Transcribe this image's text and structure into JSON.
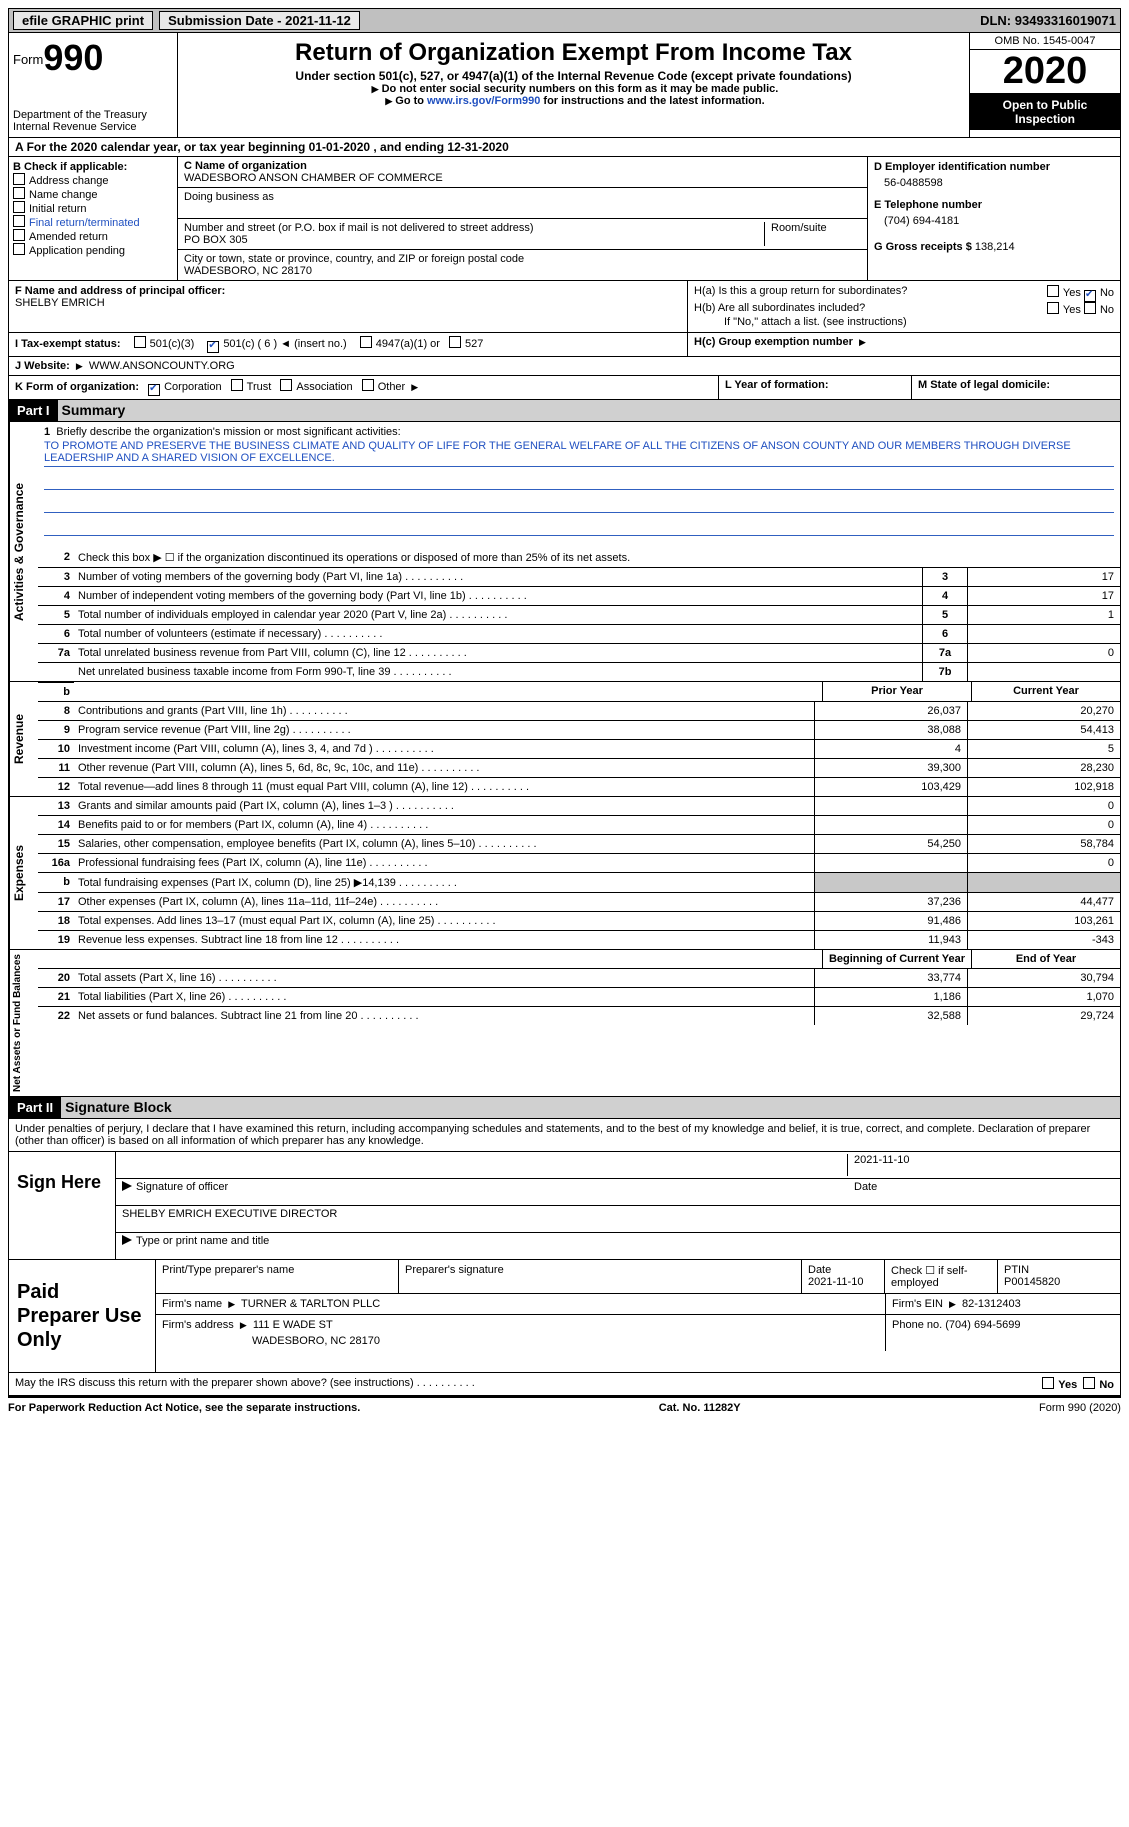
{
  "topbar": {
    "efile": "efile GRAPHIC print",
    "subdate_label": "Submission Date - ",
    "subdate": "2021-11-12",
    "dln_label": "DLN: ",
    "dln": "93493316019071"
  },
  "header": {
    "form_label": "Form",
    "form_num": "990",
    "dept": "Department of the Treasury\nInternal Revenue Service",
    "title": "Return of Organization Exempt From Income Tax",
    "sub": "Under section 501(c), 527, or 4947(a)(1) of the Internal Revenue Code (except private foundations)",
    "note1": "Do not enter social security numbers on this form as it may be made public.",
    "note2_pre": "Go to ",
    "note2_link": "www.irs.gov/Form990",
    "note2_post": " for instructions and the latest information.",
    "omb": "OMB No. 1545-0047",
    "year": "2020",
    "inspect": "Open to Public Inspection"
  },
  "row_a": "For the 2020 calendar year, or tax year beginning 01-01-2020   , and ending 12-31-2020",
  "col_b": {
    "label": "B Check if applicable:",
    "items": [
      "Address change",
      "Name change",
      "Initial return",
      "Final return/terminated",
      "Amended return",
      "Application pending"
    ]
  },
  "c": {
    "label_name": "C Name of organization",
    "name": "WADESBORO ANSON CHAMBER OF COMMERCE",
    "dba_label": "Doing business as",
    "addr_label": "Number and street (or P.O. box if mail is not delivered to street address)",
    "room_label": "Room/suite",
    "addr": "PO BOX 305",
    "city_label": "City or town, state or province, country, and ZIP or foreign postal code",
    "city": "WADESBORO, NC  28170"
  },
  "d": {
    "label": "D Employer identification number",
    "val": "56-0488598"
  },
  "e": {
    "label": "E Telephone number",
    "val": "(704) 694-4181"
  },
  "g": {
    "label": "G Gross receipts $ ",
    "val": "138,214"
  },
  "f": {
    "label": "F  Name and address of principal officer:",
    "name": "SHELBY EMRICH"
  },
  "h": {
    "a": "H(a)  Is this a group return for subordinates?",
    "b": "H(b)  Are all subordinates included?",
    "note": "If \"No,\" attach a list. (see instructions)",
    "c": "H(c)  Group exemption number",
    "yes": "Yes",
    "no": "No"
  },
  "i": {
    "label": "I     Tax-exempt status:",
    "opts": [
      "501(c)(3)",
      "501(c) ( 6 )",
      "(insert no.)",
      "4947(a)(1) or",
      "527"
    ],
    "arrow": "◄"
  },
  "j": {
    "label": "J     Website:",
    "val": "WWW.ANSONCOUNTY.ORG"
  },
  "k": {
    "label": "K Form of organization:",
    "opts": [
      "Corporation",
      "Trust",
      "Association",
      "Other"
    ]
  },
  "l": "L Year of formation:",
  "m": "M State of legal domicile:",
  "parts": {
    "p1": "Part I",
    "p1_title": "Summary",
    "p2": "Part II",
    "p2_title": "Signature Block",
    "side_ag": "Activities & Governance",
    "side_rev": "Revenue",
    "side_exp": "Expenses",
    "side_na": "Net Assets or Fund Balances"
  },
  "mission": {
    "label": "Briefly describe the organization's mission or most significant activities:",
    "text": "TO PROMOTE AND PRESERVE THE BUSINESS CLIMATE AND QUALITY OF LIFE FOR THE GENERAL WELFARE OF ALL THE CITIZENS OF ANSON COUNTY AND OUR MEMBERS THROUGH DIVERSE LEADERSHIP AND A SHARED VISION OF EXCELLENCE."
  },
  "lines_ag": [
    {
      "n": "2",
      "d": "Check this box ▶ ☐  if the organization discontinued its operations or disposed of more than 25% of its net assets.",
      "ref": "",
      "v": ""
    },
    {
      "n": "3",
      "d": "Number of voting members of the governing body (Part VI, line 1a)",
      "ref": "3",
      "v": "17"
    },
    {
      "n": "4",
      "d": "Number of independent voting members of the governing body (Part VI, line 1b)",
      "ref": "4",
      "v": "17"
    },
    {
      "n": "5",
      "d": "Total number of individuals employed in calendar year 2020 (Part V, line 2a)",
      "ref": "5",
      "v": "1"
    },
    {
      "n": "6",
      "d": "Total number of volunteers (estimate if necessary)",
      "ref": "6",
      "v": ""
    },
    {
      "n": "7a",
      "d": "Total unrelated business revenue from Part VIII, column (C), line 12",
      "ref": "7a",
      "v": "0"
    },
    {
      "n": "",
      "d": "Net unrelated business taxable income from Form 990-T, line 39",
      "ref": "7b",
      "v": ""
    }
  ],
  "col_headers": {
    "py": "Prior Year",
    "cy": "Current Year",
    "bcy": "Beginning of Current Year",
    "eoy": "End of Year"
  },
  "lines_rev": [
    {
      "n": "8",
      "d": "Contributions and grants (Part VIII, line 1h)",
      "py": "26,037",
      "cy": "20,270"
    },
    {
      "n": "9",
      "d": "Program service revenue (Part VIII, line 2g)",
      "py": "38,088",
      "cy": "54,413"
    },
    {
      "n": "10",
      "d": "Investment income (Part VIII, column (A), lines 3, 4, and 7d )",
      "py": "4",
      "cy": "5"
    },
    {
      "n": "11",
      "d": "Other revenue (Part VIII, column (A), lines 5, 6d, 8c, 9c, 10c, and 11e)",
      "py": "39,300",
      "cy": "28,230"
    },
    {
      "n": "12",
      "d": "Total revenue—add lines 8 through 11 (must equal Part VIII, column (A), line 12)",
      "py": "103,429",
      "cy": "102,918"
    }
  ],
  "lines_exp": [
    {
      "n": "13",
      "d": "Grants and similar amounts paid (Part IX, column (A), lines 1–3 )",
      "py": "",
      "cy": "0"
    },
    {
      "n": "14",
      "d": "Benefits paid to or for members (Part IX, column (A), line 4)",
      "py": "",
      "cy": "0"
    },
    {
      "n": "15",
      "d": "Salaries, other compensation, employee benefits (Part IX, column (A), lines 5–10)",
      "py": "54,250",
      "cy": "58,784"
    },
    {
      "n": "16a",
      "d": "Professional fundraising fees (Part IX, column (A), line 11e)",
      "py": "",
      "cy": "0"
    },
    {
      "n": "b",
      "d": "Total fundraising expenses (Part IX, column (D), line 25) ▶14,139",
      "py": "SHADE",
      "cy": "SHADE"
    },
    {
      "n": "17",
      "d": "Other expenses (Part IX, column (A), lines 11a–11d, 11f–24e)",
      "py": "37,236",
      "cy": "44,477"
    },
    {
      "n": "18",
      "d": "Total expenses. Add lines 13–17 (must equal Part IX, column (A), line 25)",
      "py": "91,486",
      "cy": "103,261"
    },
    {
      "n": "19",
      "d": "Revenue less expenses. Subtract line 18 from line 12",
      "py": "11,943",
      "cy": "-343"
    }
  ],
  "lines_na": [
    {
      "n": "20",
      "d": "Total assets (Part X, line 16)",
      "py": "33,774",
      "cy": "30,794"
    },
    {
      "n": "21",
      "d": "Total liabilities (Part X, line 26)",
      "py": "1,186",
      "cy": "1,070"
    },
    {
      "n": "22",
      "d": "Net assets or fund balances. Subtract line 21 from line 20",
      "py": "32,588",
      "cy": "29,724"
    }
  ],
  "sig": {
    "declare": "Under penalties of perjury, I declare that I have examined this return, including accompanying schedules and statements, and to the best of my knowledge and belief, it is true, correct, and complete. Declaration of preparer (other than officer) is based on all information of which preparer has any knowledge.",
    "sign_here": "Sign Here",
    "sig_officer": "Signature of officer",
    "sig_date": "Date",
    "officer_date": "2021-11-10",
    "officer_name": "SHELBY EMRICH  EXECUTIVE DIRECTOR",
    "type_name": "Type or print name and title"
  },
  "prep": {
    "label": "Paid Preparer Use Only",
    "h1": "Print/Type preparer's name",
    "h2": "Preparer's signature",
    "h3": "Date",
    "h3v": "2021-11-10",
    "h4": "Check ☐ if self-employed",
    "h5": "PTIN",
    "h5v": "P00145820",
    "firm_name_l": "Firm's name",
    "firm_name": "TURNER & TARLTON PLLC",
    "firm_ein_l": "Firm's EIN",
    "firm_ein": "82-1312403",
    "firm_addr_l": "Firm's address",
    "firm_addr": "111 E WADE ST",
    "firm_city": "WADESBORO, NC  28170",
    "phone_l": "Phone no.",
    "phone": "(704) 694-5699",
    "discuss": "May the IRS discuss this return with the preparer shown above? (see instructions)"
  },
  "footer": {
    "left": "For Paperwork Reduction Act Notice, see the separate instructions.",
    "mid": "Cat. No. 11282Y",
    "right": "Form 990 (2020)"
  }
}
